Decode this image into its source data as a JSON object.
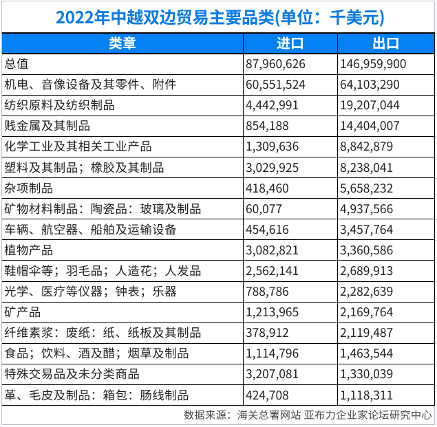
{
  "title": "2022年中越双边贸易主要品类(单位：千美元)",
  "table": {
    "columns": [
      "类章",
      "进口",
      "出口"
    ],
    "rows": [
      {
        "category": "总值",
        "import": "87,960,626",
        "export": "146,959,900"
      },
      {
        "category": "机电、音像设备及其零件、附件",
        "import": "60,551,524",
        "export": "64,103,290"
      },
      {
        "category": "纺织原料及纺织制品",
        "import": "4,442,991",
        "export": "19,207,044"
      },
      {
        "category": "贱金属及其制品",
        "import": "854,188",
        "export": "14,404,007"
      },
      {
        "category": "化学工业及其相关工业产品",
        "import": "1,309,636",
        "export": "8,842,879"
      },
      {
        "category": "塑料及其制品；橡胶及其制品",
        "import": "3,029,925",
        "export": "8,238,041"
      },
      {
        "category": "杂项制品",
        "import": "418,460",
        "export": "5,658,232"
      },
      {
        "category": "矿物材料制品：陶瓷品：玻璃及制品",
        "import": "60,077",
        "export": "4,937,566"
      },
      {
        "category": "车辆、航空器、船舶及运输设备",
        "import": "454,616",
        "export": "3,457,764"
      },
      {
        "category": "植物产品",
        "import": "3,082,821",
        "export": "3,360,586"
      },
      {
        "category": "鞋帽伞等；羽毛品；人造花；人发品",
        "import": "2,562,141",
        "export": "2,689,913"
      },
      {
        "category": "光学、医疗等仪器；钟表；乐器",
        "import": "788,786",
        "export": "2,282,639"
      },
      {
        "category": "矿产品",
        "import": "1,213,965",
        "export": "2,169,764"
      },
      {
        "category": "纤维素浆：废纸：纸、纸板及其制品",
        "import": "378,912",
        "export": "2,119,487"
      },
      {
        "category": "食品；饮料、酒及醋；烟草及制品",
        "import": "1,114,796",
        "export": "1,463,544"
      },
      {
        "category": "特殊交易品及未分类商品",
        "import": "3,207,081",
        "export": "1,330,039"
      },
      {
        "category": "革、毛皮及制品：箱包：肠线制品",
        "import": "424,708",
        "export": "1,118,311"
      }
    ]
  },
  "footer": {
    "source": "数据来源：海关总署网站 亚布力企业家论坛研究中心"
  },
  "colors": {
    "title_text": "#0b7be6",
    "header_bg": "#0580f2",
    "header_text": "#ffffff",
    "body_text": "#1f1f1f",
    "table_border": "#000000",
    "sheet_gridline": "#b7c1d1",
    "footer_text": "#444444",
    "background": "#ffffff"
  },
  "chart_data": {
    "type": "table",
    "title": "2022年中越双边贸易主要品类(单位：千美元)",
    "columns": [
      "类章",
      "进口",
      "出口"
    ],
    "categories": [
      "总值",
      "机电、音像设备及其零件、附件",
      "纺织原料及纺织制品",
      "贱金属及其制品",
      "化学工业及其相关工业产品",
      "塑料及其制品；橡胶及其制品",
      "杂项制品",
      "矿物材料制品：陶瓷品：玻璃及制品",
      "车辆、航空器、船舶及运输设备",
      "植物产品",
      "鞋帽伞等；羽毛品；人造花；人发品",
      "光学、医疗等仪器；钟表；乐器",
      "矿产品",
      "纤维素浆：废纸：纸、纸板及其制品",
      "食品；饮料、酒及醋；烟草及制品",
      "特殊交易品及未分类商品",
      "革、毛皮及制品：箱包：肠线制品"
    ],
    "series": [
      {
        "name": "进口",
        "values": [
          87960626,
          60551524,
          4442991,
          854188,
          1309636,
          3029925,
          418460,
          60077,
          454616,
          3082821,
          2562141,
          788786,
          1213965,
          378912,
          1114796,
          3207081,
          424708
        ]
      },
      {
        "name": "出口",
        "values": [
          146959900,
          64103290,
          19207044,
          14404007,
          8842879,
          8238041,
          5658232,
          4937566,
          3457764,
          3360586,
          2689913,
          2282639,
          2169764,
          2119487,
          1463544,
          1330039,
          1118311
        ]
      }
    ],
    "source_note": "数据来源：海关总署网站 亚布力企业家论坛研究中心"
  }
}
